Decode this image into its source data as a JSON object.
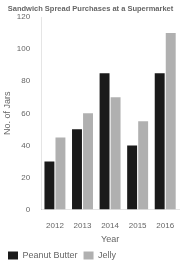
{
  "chart_data": {
    "type": "bar",
    "title": "Sandwich Spread Purchases at a Supermarket",
    "xlabel": "Year",
    "ylabel": "No. of Jars",
    "categories": [
      "2012",
      "2013",
      "2014",
      "2015",
      "2016"
    ],
    "series": [
      {
        "name": "Peanut Butter",
        "color": "#1a1a1a",
        "values": [
          30,
          50,
          85,
          40,
          85
        ]
      },
      {
        "name": "Jelly",
        "color": "#b0b0b0",
        "values": [
          45,
          60,
          70,
          55,
          110
        ]
      }
    ],
    "ylim": [
      0,
      120
    ],
    "yticks": [
      0,
      20,
      40,
      60,
      80,
      100,
      120
    ],
    "grid": false,
    "legend": "bottom"
  }
}
